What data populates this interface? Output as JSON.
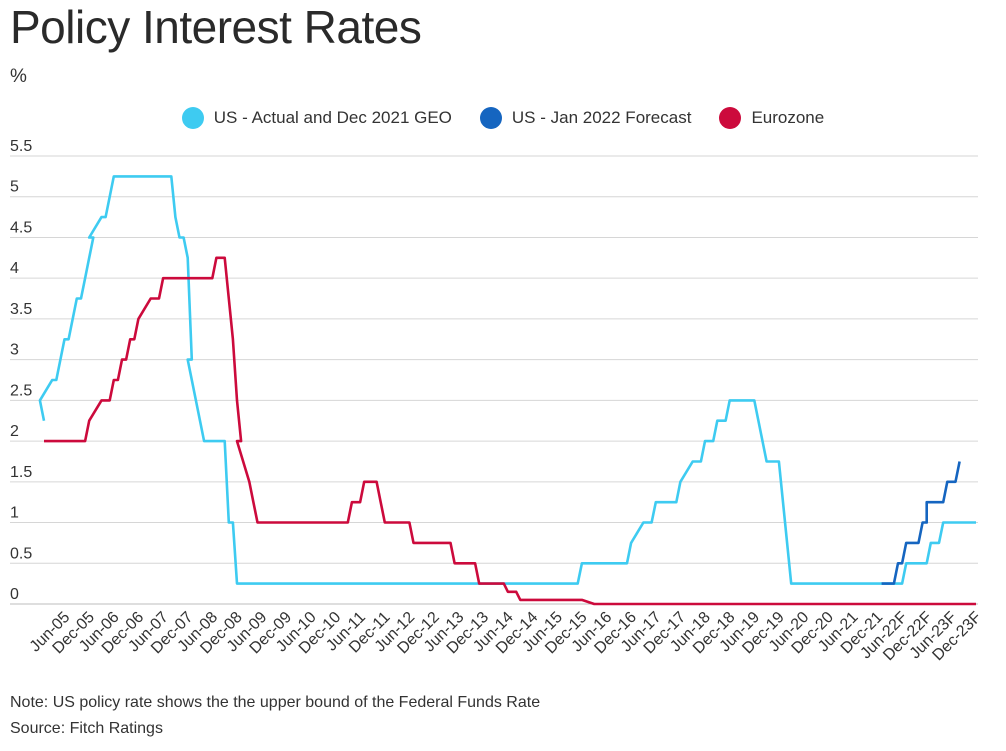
{
  "page": {
    "title": "Policy Interest Rates",
    "unit": "%",
    "note": "Note: US policy rate shows the the upper bound of the Federal Funds Rate",
    "source": "Source: Fitch Ratings"
  },
  "chart_data": {
    "type": "line",
    "title": "Policy Interest Rates",
    "ylabel": "%",
    "ylim": [
      0,
      5.5
    ],
    "yticks": [
      "0",
      "0.5",
      "1",
      "1.5",
      "2",
      "2.5",
      "3",
      "3.5",
      "4",
      "4.5",
      "5",
      "5.5"
    ],
    "x_tick_labels": [
      "Jun-05",
      "Dec-05",
      "Jun-06",
      "Dec-06",
      "Jun-07",
      "Dec-07",
      "Jun-08",
      "Dec-08",
      "Jun-09",
      "Dec-09",
      "Jun-10",
      "Dec-10",
      "Jun-11",
      "Dec-11",
      "Jun-12",
      "Dec-12",
      "Jun-13",
      "Dec-13",
      "Jun-14",
      "Dec-14",
      "Jun-15",
      "Dec-15",
      "Jun-16",
      "Dec-16",
      "Jun-17",
      "Dec-17",
      "Jun-18",
      "Dec-18",
      "Jun-19",
      "Dec-19",
      "Jun-20",
      "Dec-20",
      "Jun-21",
      "Dec-21",
      "Jun-22F",
      "Dec-22F",
      "Jun-23F",
      "Dec-23F"
    ],
    "x_period": "monthly, Jan-05 to Dec-23",
    "grid": true,
    "legend_position": "top-center",
    "series": [
      {
        "name": "US - Actual and Dec 2021 GEO",
        "color": "#3ecbf1",
        "points": [
          [
            "Jan-05",
            2.25
          ],
          [
            "Feb-05",
            2.5
          ],
          [
            "Mar-05",
            2.75
          ],
          [
            "Apr-05",
            2.75
          ],
          [
            "May-05",
            3.0
          ],
          [
            "Jun-05",
            3.25
          ],
          [
            "Jul-05",
            3.25
          ],
          [
            "Aug-05",
            3.5
          ],
          [
            "Sep-05",
            3.75
          ],
          [
            "Oct-05",
            3.75
          ],
          [
            "Nov-05",
            4.0
          ],
          [
            "Dec-05",
            4.25
          ],
          [
            "Jan-06",
            4.5
          ],
          [
            "Feb-06",
            4.5
          ],
          [
            "Mar-06",
            4.75
          ],
          [
            "Apr-06",
            4.75
          ],
          [
            "May-06",
            5.0
          ],
          [
            "Jun-06",
            5.25
          ],
          [
            "Jul-06",
            5.25
          ],
          [
            "Jun-07",
            5.25
          ],
          [
            "Aug-07",
            5.25
          ],
          [
            "Sep-07",
            4.75
          ],
          [
            "Oct-07",
            4.5
          ],
          [
            "Nov-07",
            4.5
          ],
          [
            "Dec-07",
            4.25
          ],
          [
            "Jan-08",
            3.0
          ],
          [
            "Feb-08",
            3.0
          ],
          [
            "Mar-08",
            2.25
          ],
          [
            "Apr-08",
            2.0
          ],
          [
            "May-08",
            2.0
          ],
          [
            "Sep-08",
            2.0
          ],
          [
            "Oct-08",
            1.0
          ],
          [
            "Nov-08",
            1.0
          ],
          [
            "Dec-08",
            0.25
          ],
          [
            "Nov-15",
            0.25
          ],
          [
            "Dec-15",
            0.5
          ],
          [
            "Nov-16",
            0.5
          ],
          [
            "Dec-16",
            0.75
          ],
          [
            "Feb-17",
            0.75
          ],
          [
            "Mar-17",
            1.0
          ],
          [
            "May-17",
            1.0
          ],
          [
            "Jun-17",
            1.25
          ],
          [
            "Nov-17",
            1.25
          ],
          [
            "Dec-17",
            1.5
          ],
          [
            "Feb-18",
            1.5
          ],
          [
            "Mar-18",
            1.75
          ],
          [
            "May-18",
            1.75
          ],
          [
            "Jun-18",
            2.0
          ],
          [
            "Aug-18",
            2.0
          ],
          [
            "Sep-18",
            2.25
          ],
          [
            "Nov-18",
            2.25
          ],
          [
            "Dec-18",
            2.5
          ],
          [
            "Jun-19",
            2.5
          ],
          [
            "Jul-19",
            2.25
          ],
          [
            "Aug-19",
            2.0
          ],
          [
            "Sep-19",
            1.75
          ],
          [
            "Oct-19",
            1.75
          ],
          [
            "Feb-20",
            1.75
          ],
          [
            "Mar-20",
            0.25
          ],
          [
            "Jun-22",
            0.25
          ],
          [
            "Jul-22",
            0.5
          ],
          [
            "Dec-22",
            0.5
          ],
          [
            "Jan-23",
            0.75
          ],
          [
            "Mar-23",
            0.75
          ],
          [
            "Apr-23",
            1.0
          ],
          [
            "Dec-23",
            1.0
          ]
        ]
      },
      {
        "name": "US - Jan 2022 Forecast",
        "color": "#1565c0",
        "points": [
          [
            "Jan-22",
            0.25
          ],
          [
            "Apr-22",
            0.25
          ],
          [
            "May-22",
            0.5
          ],
          [
            "Jun-22",
            0.5
          ],
          [
            "Jul-22",
            0.75
          ],
          [
            "Oct-22",
            0.75
          ],
          [
            "Nov-22",
            1.0
          ],
          [
            "Dec-22",
            1.0
          ],
          [
            "Feb-23",
            1.25
          ],
          [
            "Apr-23",
            1.25
          ],
          [
            "May-23",
            1.5
          ],
          [
            "Jul-23",
            1.5
          ],
          [
            "Aug-23",
            1.75
          ]
        ]
      },
      {
        "name": "Eurozone",
        "color": "#cc0a3c",
        "points": [
          [
            "Jan-05",
            2.0
          ],
          [
            "Nov-05",
            2.0
          ],
          [
            "Dec-05",
            2.25
          ],
          [
            "Feb-06",
            2.25
          ],
          [
            "Mar-06",
            2.5
          ],
          [
            "May-06",
            2.5
          ],
          [
            "Jun-06",
            2.75
          ],
          [
            "Jul-06",
            2.75
          ],
          [
            "Aug-06",
            3.0
          ],
          [
            "Sep-06",
            3.0
          ],
          [
            "Oct-06",
            3.25
          ],
          [
            "Nov-06",
            3.25
          ],
          [
            "Dec-06",
            3.5
          ],
          [
            "Feb-07",
            3.5
          ],
          [
            "Mar-07",
            3.75
          ],
          [
            "May-07",
            3.75
          ],
          [
            "Jun-07",
            4.0
          ],
          [
            "Jun-08",
            4.0
          ],
          [
            "Jul-08",
            4.25
          ],
          [
            "Sep-08",
            4.25
          ],
          [
            "Oct-08",
            3.75
          ],
          [
            "Nov-08",
            3.25
          ],
          [
            "Dec-08",
            2.5
          ],
          [
            "Jan-09",
            2.0
          ],
          [
            "Feb-09",
            2.0
          ],
          [
            "Mar-09",
            1.5
          ],
          [
            "Apr-09",
            1.25
          ],
          [
            "May-09",
            1.0
          ],
          [
            "Mar-11",
            1.0
          ],
          [
            "Apr-11",
            1.25
          ],
          [
            "Jun-11",
            1.25
          ],
          [
            "Jul-11",
            1.5
          ],
          [
            "Oct-11",
            1.5
          ],
          [
            "Nov-11",
            1.25
          ],
          [
            "Dec-11",
            1.0
          ],
          [
            "Jun-12",
            1.0
          ],
          [
            "Jul-12",
            0.75
          ],
          [
            "Apr-13",
            0.75
          ],
          [
            "May-13",
            0.5
          ],
          [
            "Oct-13",
            0.5
          ],
          [
            "Nov-13",
            0.25
          ],
          [
            "May-14",
            0.25
          ],
          [
            "Jun-14",
            0.15
          ],
          [
            "Aug-14",
            0.15
          ],
          [
            "Sep-14",
            0.05
          ],
          [
            "Feb-16",
            0.05
          ],
          [
            "Mar-16",
            0.0
          ],
          [
            "Dec-23",
            0.0
          ]
        ]
      }
    ]
  }
}
